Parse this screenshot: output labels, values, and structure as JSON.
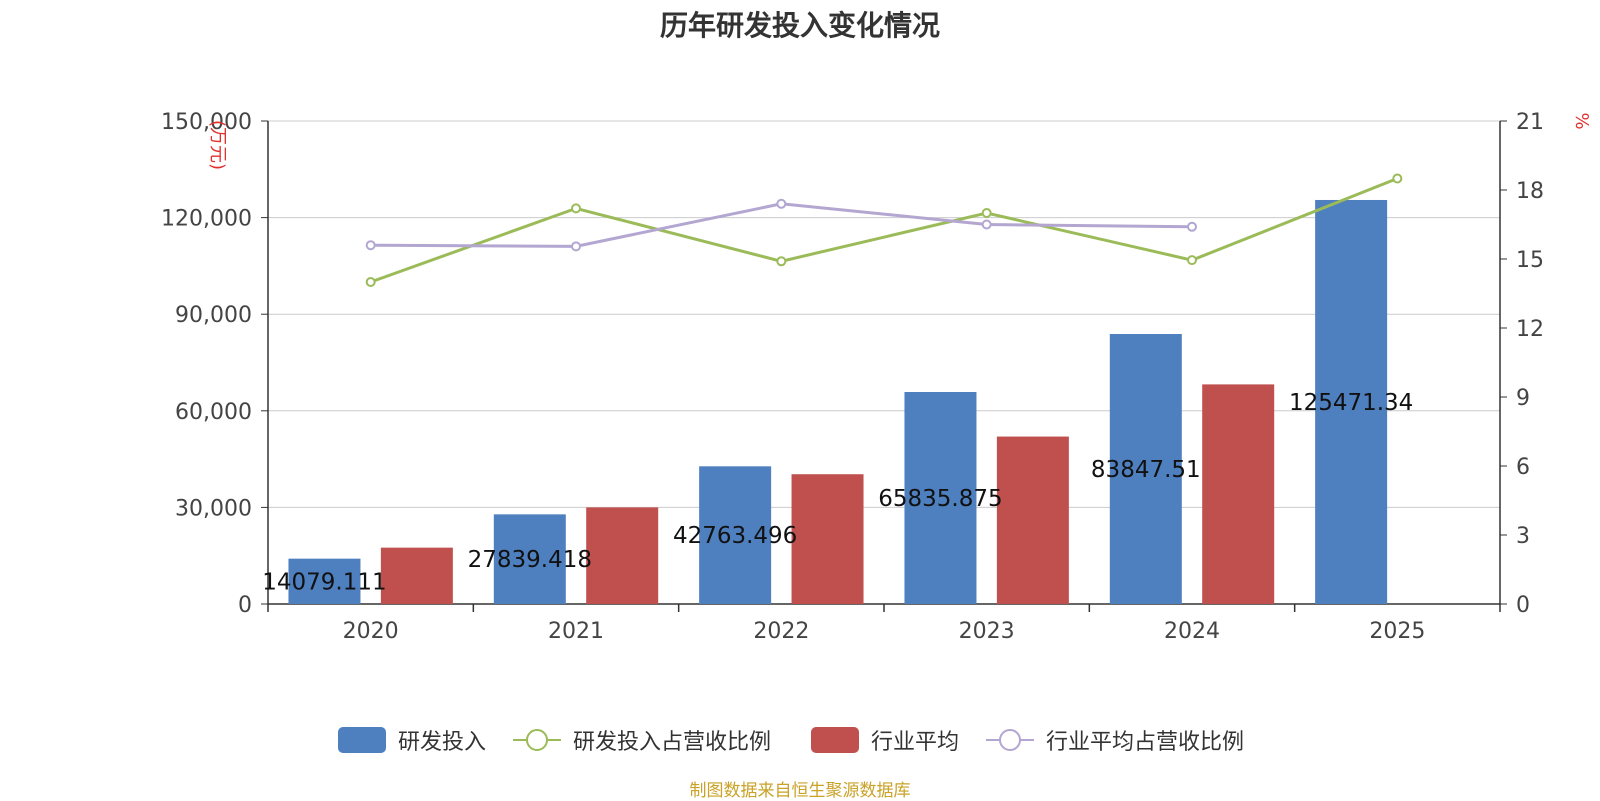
{
  "chart_data": {
    "type": "bar",
    "title": "历年研发投入变化情况",
    "categories": [
      "2020",
      "2021",
      "2022",
      "2023",
      "2024",
      "2025"
    ],
    "left_axis": {
      "unit_label": "(万元)",
      "min": 0,
      "max": 150000,
      "ticks": [
        "0",
        "30,000",
        "60,000",
        "90,000",
        "120,000",
        "150,000"
      ]
    },
    "right_axis": {
      "unit_label": "%",
      "min": 0,
      "max": 21,
      "ticks": [
        "0",
        "3",
        "6",
        "9",
        "12",
        "15",
        "18",
        "21"
      ]
    },
    "series": [
      {
        "name": "研发投入",
        "kind": "bar",
        "axis": "left",
        "color": "#4e7fbf",
        "values": [
          14079.111,
          27839.418,
          42763.496,
          65835.875,
          83847.51,
          125471.34
        ],
        "labels": [
          "14079.111",
          "27839.418",
          "42763.496",
          "65835.875",
          "83847.51",
          "125471.34"
        ]
      },
      {
        "name": "研发投入占营收比例",
        "kind": "line",
        "axis": "right",
        "color": "#9bbb59",
        "values": [
          14.0,
          17.2,
          14.9,
          17.0,
          14.95,
          18.5
        ]
      },
      {
        "name": "行业平均",
        "kind": "bar",
        "axis": "left",
        "color": "#c0504d",
        "values": [
          17500,
          30000,
          40300,
          52000,
          68200,
          null
        ]
      },
      {
        "name": "行业平均占营收比例",
        "kind": "line",
        "axis": "right",
        "color": "#b3a6d1",
        "values": [
          15.6,
          15.55,
          17.4,
          16.5,
          16.4,
          null
        ]
      }
    ],
    "source": "制图数据来自恒生聚源数据库",
    "grid": true,
    "legend_position": "bottom-center"
  },
  "colors": {
    "axis_unit": "#e0312f",
    "grid": "#cccccc",
    "axis_text": "#444444",
    "source": "#c9a227"
  }
}
